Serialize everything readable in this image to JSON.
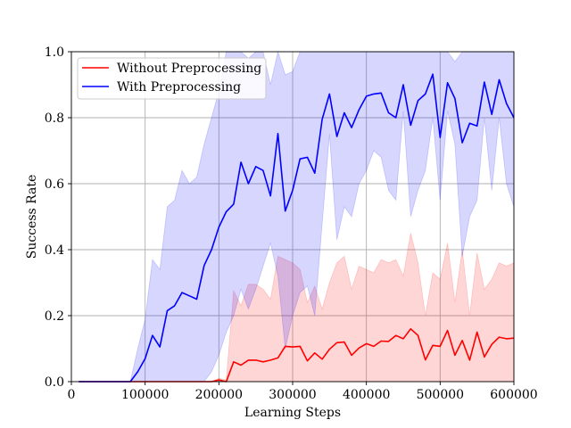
{
  "chart_data": {
    "type": "line",
    "title": "",
    "xlabel": "Learning Steps",
    "ylabel": "Success Rate",
    "xlim": [
      0,
      600000
    ],
    "ylim": [
      0,
      1.0
    ],
    "xticks": [
      0,
      100000,
      200000,
      300000,
      400000,
      500000,
      600000
    ],
    "xtick_labels": [
      "0",
      "100000",
      "200000",
      "300000",
      "400000",
      "500000",
      "600000"
    ],
    "yticks": [
      0.0,
      0.2,
      0.4,
      0.6,
      0.8,
      1.0
    ],
    "ytick_labels": [
      "0.0",
      "0.2",
      "0.4",
      "0.6",
      "0.8",
      "1.0"
    ],
    "grid": true,
    "legend_position": "top-left",
    "x": [
      10000,
      20000,
      30000,
      40000,
      50000,
      60000,
      70000,
      80000,
      90000,
      100000,
      110000,
      120000,
      130000,
      140000,
      150000,
      160000,
      170000,
      180000,
      190000,
      200000,
      210000,
      220000,
      230000,
      240000,
      250000,
      260000,
      270000,
      280000,
      290000,
      300000,
      310000,
      320000,
      330000,
      340000,
      350000,
      360000,
      370000,
      380000,
      390000,
      400000,
      410000,
      420000,
      430000,
      440000,
      450000,
      460000,
      470000,
      480000,
      490000,
      500000,
      510000,
      520000,
      530000,
      540000,
      550000,
      560000,
      570000,
      580000,
      590000,
      600000
    ],
    "series": [
      {
        "name": "Without Preprocessing",
        "color": "#ff0000",
        "values": [
          0,
          0,
          0,
          0,
          0,
          0,
          0,
          0,
          0,
          0,
          0,
          0,
          0,
          0,
          0,
          0,
          0,
          0,
          0,
          0.005,
          0,
          0.06,
          0.05,
          0.065,
          0.065,
          0.06,
          0.065,
          0.072,
          0.107,
          0.105,
          0.107,
          0.063,
          0.087,
          0.068,
          0.098,
          0.118,
          0.12,
          0.08,
          0.102,
          0.115,
          0.107,
          0.123,
          0.122,
          0.14,
          0.13,
          0.16,
          0.14,
          0.066,
          0.11,
          0.107,
          0.155,
          0.08,
          0.125,
          0.065,
          0.15,
          0.075,
          0.113,
          0.135,
          0.13,
          0.132
        ],
        "lower": [
          0,
          0,
          0,
          0,
          0,
          0,
          0,
          0,
          0,
          0,
          0,
          0,
          0,
          0,
          0,
          0,
          0,
          0,
          0,
          0,
          0,
          0,
          0,
          0,
          0,
          0,
          0,
          0,
          0,
          0,
          0,
          0,
          0,
          0,
          0,
          0,
          0,
          0,
          0,
          0,
          0,
          0,
          0,
          0,
          0,
          0,
          0,
          0,
          0,
          0,
          0,
          0,
          0,
          0,
          0,
          0,
          0,
          0,
          0,
          0
        ],
        "upper": [
          0,
          0,
          0,
          0,
          0,
          0,
          0,
          0,
          0,
          0,
          0,
          0,
          0,
          0,
          0,
          0,
          0,
          0,
          0,
          0.01,
          0.005,
          0.275,
          0.23,
          0.295,
          0.295,
          0.28,
          0.25,
          0.38,
          0.37,
          0.36,
          0.34,
          0.24,
          0.29,
          0.22,
          0.3,
          0.36,
          0.38,
          0.28,
          0.35,
          0.34,
          0.33,
          0.37,
          0.36,
          0.37,
          0.32,
          0.45,
          0.36,
          0.2,
          0.33,
          0.31,
          0.42,
          0.24,
          0.4,
          0.2,
          0.39,
          0.28,
          0.31,
          0.36,
          0.35,
          0.36
        ]
      },
      {
        "name": "With Preprocessing",
        "color": "#0000ff",
        "values": [
          0,
          0,
          0,
          0,
          0,
          0,
          0,
          0,
          0.03,
          0.07,
          0.14,
          0.105,
          0.215,
          0.23,
          0.27,
          0.26,
          0.25,
          0.352,
          0.4,
          0.468,
          0.515,
          0.538,
          0.665,
          0.6,
          0.652,
          0.64,
          0.563,
          0.752,
          0.517,
          0.58,
          0.675,
          0.68,
          0.632,
          0.795,
          0.872,
          0.743,
          0.815,
          0.77,
          0.824,
          0.865,
          0.872,
          0.875,
          0.815,
          0.8,
          0.9,
          0.777,
          0.852,
          0.872,
          0.932,
          0.74,
          0.906,
          0.858,
          0.724,
          0.783,
          0.775,
          0.908,
          0.81,
          0.915,
          0.843,
          0.8
        ],
        "lower": [
          0,
          0,
          0,
          0,
          0,
          0,
          0,
          0,
          0,
          0,
          0,
          0,
          0,
          0,
          0,
          0,
          0,
          0,
          0.03,
          0.08,
          0.15,
          0.2,
          0.28,
          0.22,
          0.28,
          0.35,
          0.42,
          0.32,
          0.1,
          0.2,
          0.27,
          0.29,
          0.2,
          0.48,
          0.75,
          0.43,
          0.53,
          0.5,
          0.6,
          0.64,
          0.7,
          0.68,
          0.58,
          0.55,
          0.82,
          0.5,
          0.58,
          0.64,
          0.8,
          0.55,
          0.82,
          0.72,
          0.38,
          0.5,
          0.55,
          0.8,
          0.58,
          0.8,
          0.6,
          0.53
        ],
        "upper": [
          0,
          0,
          0,
          0,
          0,
          0,
          0,
          0,
          0.1,
          0.19,
          0.37,
          0.34,
          0.53,
          0.55,
          0.64,
          0.6,
          0.62,
          0.72,
          0.8,
          0.88,
          1.0,
          1.0,
          1.0,
          0.98,
          1.0,
          1.0,
          0.9,
          1.0,
          0.93,
          0.94,
          1.0,
          1.0,
          1.0,
          1.0,
          1.0,
          1.0,
          1.0,
          1.0,
          1.0,
          1.0,
          1.0,
          1.0,
          1.0,
          1.0,
          1.0,
          1.0,
          1.0,
          1.0,
          1.0,
          1.0,
          1.0,
          0.97,
          1.0,
          1.0,
          1.0,
          1.0,
          1.0,
          1.0,
          1.0,
          1.0
        ]
      }
    ]
  }
}
